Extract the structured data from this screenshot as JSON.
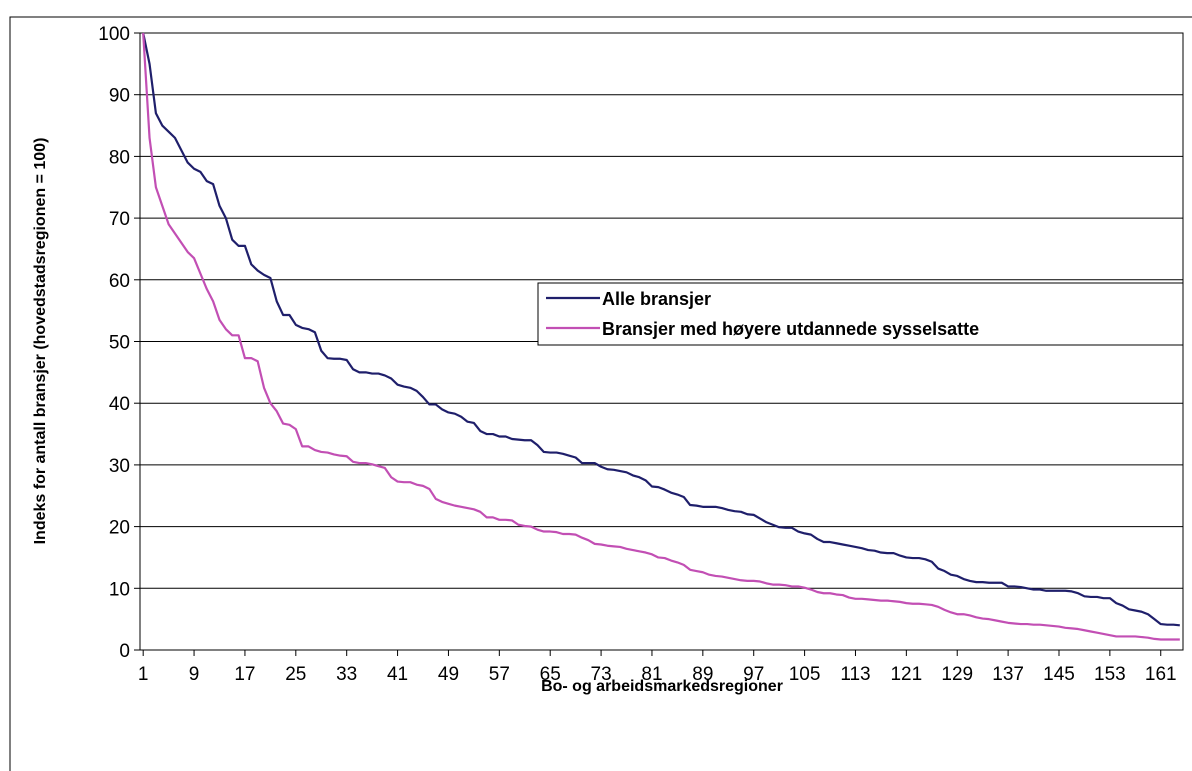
{
  "chart_data": {
    "type": "line",
    "x_label": "Bo- og arbeidsmarkedsregioner",
    "y_label": "Indeks for antall bransjer (hovedstadsregionen = 100)",
    "x": [
      1,
      2,
      3,
      4,
      5,
      6,
      7,
      8,
      9,
      10,
      11,
      12,
      13,
      14,
      15,
      16,
      17,
      18,
      19,
      20,
      21,
      22,
      23,
      24,
      25,
      26,
      27,
      28,
      29,
      30,
      31,
      32,
      33,
      34,
      35,
      36,
      37,
      38,
      39,
      40,
      41,
      42,
      43,
      44,
      45,
      46,
      47,
      48,
      49,
      50,
      51,
      52,
      53,
      54,
      55,
      56,
      57,
      58,
      59,
      60,
      61,
      62,
      63,
      64,
      65,
      66,
      67,
      68,
      69,
      70,
      71,
      72,
      73,
      74,
      75,
      76,
      77,
      78,
      79,
      80,
      81,
      82,
      83,
      84,
      85,
      86,
      87,
      88,
      89,
      90,
      91,
      92,
      93,
      94,
      95,
      96,
      97,
      98,
      99,
      100,
      101,
      102,
      103,
      104,
      105,
      106,
      107,
      108,
      109,
      110,
      111,
      112,
      113,
      114,
      115,
      116,
      117,
      118,
      119,
      120,
      121,
      122,
      123,
      124,
      125,
      126,
      127,
      128,
      129,
      130,
      131,
      132,
      133,
      134,
      135,
      136,
      137,
      138,
      139,
      140,
      141,
      142,
      143,
      144,
      145,
      146,
      147,
      148,
      149,
      150,
      151,
      152,
      153,
      154,
      155,
      156,
      157,
      158,
      159,
      160,
      161,
      162,
      163,
      164
    ],
    "series": [
      {
        "name": "Alle bransjer",
        "color": "#1f1f6b",
        "values": [
          100,
          95,
          87,
          85,
          84,
          83,
          81,
          79,
          78,
          77.5,
          76,
          75.5,
          72,
          70,
          66.5,
          65.5,
          65.5,
          62.5,
          61.5,
          60.8,
          60.3,
          56.5,
          54.3,
          54.3,
          52.7,
          52.2,
          52,
          51.5,
          48.5,
          47.3,
          47.2,
          47.2,
          47,
          45.5,
          45,
          45,
          44.8,
          44.8,
          44.5,
          44,
          43,
          42.7,
          42.5,
          42,
          41,
          39.8,
          39.8,
          39,
          38.5,
          38.3,
          37.8,
          37,
          36.8,
          35.5,
          35,
          35,
          34.6,
          34.6,
          34.2,
          34.1,
          34,
          34,
          33.2,
          32.1,
          32,
          32,
          31.8,
          31.5,
          31.2,
          30.3,
          30.3,
          30.3,
          29.7,
          29.3,
          29.2,
          29,
          28.8,
          28.3,
          28,
          27.5,
          26.5,
          26.4,
          26,
          25.5,
          25.2,
          24.8,
          23.5,
          23.4,
          23.2,
          23.2,
          23.2,
          23,
          22.7,
          22.5,
          22.4,
          22,
          21.9,
          21.3,
          20.7,
          20.3,
          19.9,
          19.8,
          19.8,
          19.2,
          18.9,
          18.7,
          18,
          17.5,
          17.5,
          17.3,
          17.1,
          16.9,
          16.7,
          16.5,
          16.2,
          16.1,
          15.8,
          15.7,
          15.7,
          15.3,
          15,
          14.9,
          14.9,
          14.7,
          14.3,
          13.2,
          12.8,
          12.2,
          12,
          11.5,
          11.2,
          11,
          11,
          10.9,
          10.9,
          10.9,
          10.3,
          10.3,
          10.2,
          10,
          9.8,
          9.8,
          9.6,
          9.6,
          9.6,
          9.6,
          9.5,
          9.2,
          8.7,
          8.6,
          8.6,
          8.4,
          8.4,
          7.6,
          7.2,
          6.6,
          6.4,
          6.2,
          5.8,
          5,
          4.2,
          4.1,
          4.1,
          4
        ]
      },
      {
        "name": "Bransjer med høyere utdannede sysselsatte",
        "color": "#c24fb4",
        "values": [
          100,
          83,
          75,
          72,
          69,
          67.5,
          66,
          64.5,
          63.5,
          61,
          58.5,
          56.5,
          53.5,
          52,
          51,
          51,
          47.3,
          47.3,
          46.8,
          42.5,
          40,
          38.7,
          36.7,
          36.5,
          35.8,
          33,
          33,
          32.4,
          32.1,
          32,
          31.7,
          31.5,
          31.4,
          30.5,
          30.3,
          30.3,
          30.1,
          29.8,
          29.5,
          28,
          27.3,
          27.2,
          27.2,
          26.8,
          26.6,
          26.1,
          24.5,
          24,
          23.7,
          23.4,
          23.2,
          23,
          22.8,
          22.4,
          21.5,
          21.5,
          21.1,
          21.1,
          21,
          20.3,
          20.1,
          20,
          19.5,
          19.2,
          19.2,
          19.1,
          18.8,
          18.8,
          18.7,
          18.2,
          17.8,
          17.2,
          17.1,
          16.9,
          16.8,
          16.7,
          16.4,
          16.2,
          16,
          15.8,
          15.5,
          15,
          14.9,
          14.5,
          14.2,
          13.8,
          13,
          12.8,
          12.6,
          12.2,
          12,
          11.9,
          11.7,
          11.5,
          11.3,
          11.2,
          11.2,
          11.1,
          10.8,
          10.6,
          10.6,
          10.5,
          10.3,
          10.3,
          10.1,
          9.8,
          9.4,
          9.2,
          9.2,
          9,
          8.9,
          8.5,
          8.3,
          8.3,
          8.2,
          8.1,
          8,
          8,
          7.9,
          7.8,
          7.6,
          7.5,
          7.5,
          7.4,
          7.3,
          7,
          6.5,
          6.1,
          5.8,
          5.8,
          5.6,
          5.3,
          5.1,
          5,
          4.8,
          4.6,
          4.4,
          4.3,
          4.2,
          4.2,
          4.1,
          4.1,
          4,
          3.9,
          3.8,
          3.6,
          3.5,
          3.4,
          3.2,
          3,
          2.8,
          2.6,
          2.4,
          2.2,
          2.2,
          2.2,
          2.2,
          2.1,
          2,
          1.8,
          1.7,
          1.7,
          1.7,
          1.7
        ]
      }
    ],
    "xlim": [
      0.5,
      164.5
    ],
    "xticks": [
      1,
      9,
      17,
      25,
      33,
      41,
      49,
      57,
      65,
      73,
      81,
      89,
      97,
      105,
      113,
      121,
      129,
      137,
      145,
      153,
      161
    ],
    "ylim": [
      0,
      100
    ],
    "yticks": [
      0,
      10,
      20,
      30,
      40,
      50,
      60,
      70,
      80,
      90,
      100
    ],
    "grid": true,
    "legend": "right"
  }
}
